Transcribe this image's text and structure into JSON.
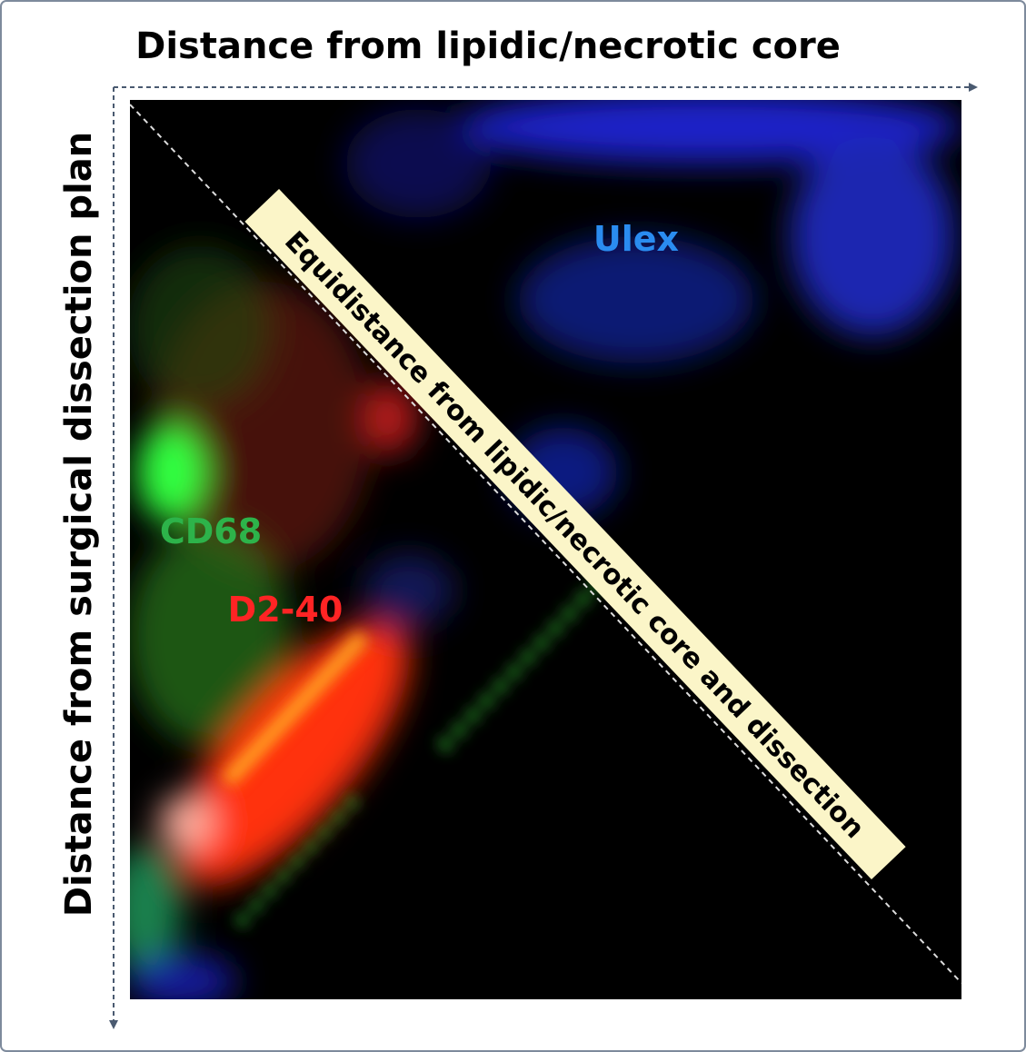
{
  "x_axis_label": "Distance from lipidic/necrotic core",
  "y_axis_label": "Distance from surgical dissection plan",
  "diagonal_label": "Equidistance from lipidic/necrotic core and dissection",
  "markers": [
    "Ulex",
    "CD68",
    "D2-40"
  ]
}
